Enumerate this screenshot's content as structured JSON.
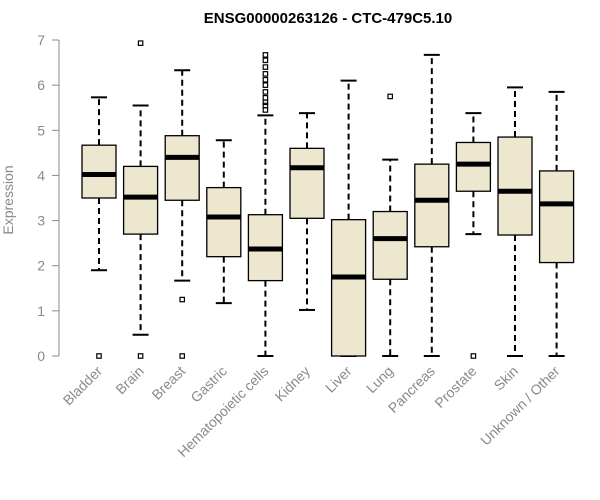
{
  "chart_data": {
    "type": "boxplot",
    "title": "ENSG00000263126 - CTC-479C5.10",
    "ylabel": "Expression",
    "xlabel": "",
    "ylim": [
      0,
      7
    ],
    "yticks": [
      0,
      1,
      2,
      3,
      4,
      5,
      6,
      7
    ],
    "box_color": "#ede7cf",
    "categories": [
      "Bladder",
      "Brain",
      "Breast",
      "Gastric",
      "Hematopoietic cells",
      "Kidney",
      "Liver",
      "Lung",
      "Pancreas",
      "Prostate",
      "Skin",
      "Unknown / Other"
    ],
    "boxes": [
      {
        "category": "Bladder",
        "whisker_low": 1.9,
        "q1": 3.5,
        "median": 4.02,
        "q3": 4.67,
        "whisker_high": 5.73,
        "outliers": [
          0.0
        ]
      },
      {
        "category": "Brain",
        "whisker_low": 0.47,
        "q1": 2.7,
        "median": 3.52,
        "q3": 4.2,
        "whisker_high": 5.55,
        "outliers": [
          6.93,
          0.0
        ]
      },
      {
        "category": "Breast",
        "whisker_low": 1.67,
        "q1": 3.45,
        "median": 4.4,
        "q3": 4.88,
        "whisker_high": 6.33,
        "outliers": [
          1.25,
          0.0
        ]
      },
      {
        "category": "Gastric",
        "whisker_low": 1.17,
        "q1": 2.2,
        "median": 3.08,
        "q3": 3.73,
        "whisker_high": 4.78,
        "outliers": []
      },
      {
        "category": "Hematopoietic cells",
        "whisker_low": 0.0,
        "q1": 1.67,
        "median": 2.37,
        "q3": 3.13,
        "whisker_high": 5.33,
        "outliers": [
          5.45,
          5.55,
          5.62,
          5.72,
          5.85,
          6.0,
          6.12,
          6.25,
          6.4,
          6.55,
          6.67
        ]
      },
      {
        "category": "Kidney",
        "whisker_low": 1.02,
        "q1": 3.05,
        "median": 4.17,
        "q3": 4.6,
        "whisker_high": 5.38,
        "outliers": []
      },
      {
        "category": "Liver",
        "whisker_low": 0.0,
        "q1": 0.0,
        "median": 1.75,
        "q3": 3.02,
        "whisker_high": 6.1,
        "outliers": []
      },
      {
        "category": "Lung",
        "whisker_low": 0.0,
        "q1": 1.7,
        "median": 2.6,
        "q3": 3.2,
        "whisker_high": 4.35,
        "outliers": [
          5.75
        ]
      },
      {
        "category": "Pancreas",
        "whisker_low": 0.0,
        "q1": 2.42,
        "median": 3.45,
        "q3": 4.25,
        "whisker_high": 6.67,
        "outliers": []
      },
      {
        "category": "Prostate",
        "whisker_low": 2.7,
        "q1": 3.65,
        "median": 4.25,
        "q3": 4.73,
        "whisker_high": 5.38,
        "outliers": [
          0.0
        ]
      },
      {
        "category": "Skin",
        "whisker_low": 0.0,
        "q1": 2.68,
        "median": 3.65,
        "q3": 4.85,
        "whisker_high": 5.95,
        "outliers": []
      },
      {
        "category": "Unknown / Other",
        "whisker_low": 0.0,
        "q1": 2.07,
        "median": 3.37,
        "q3": 4.1,
        "whisker_high": 5.85,
        "outliers": []
      }
    ]
  }
}
